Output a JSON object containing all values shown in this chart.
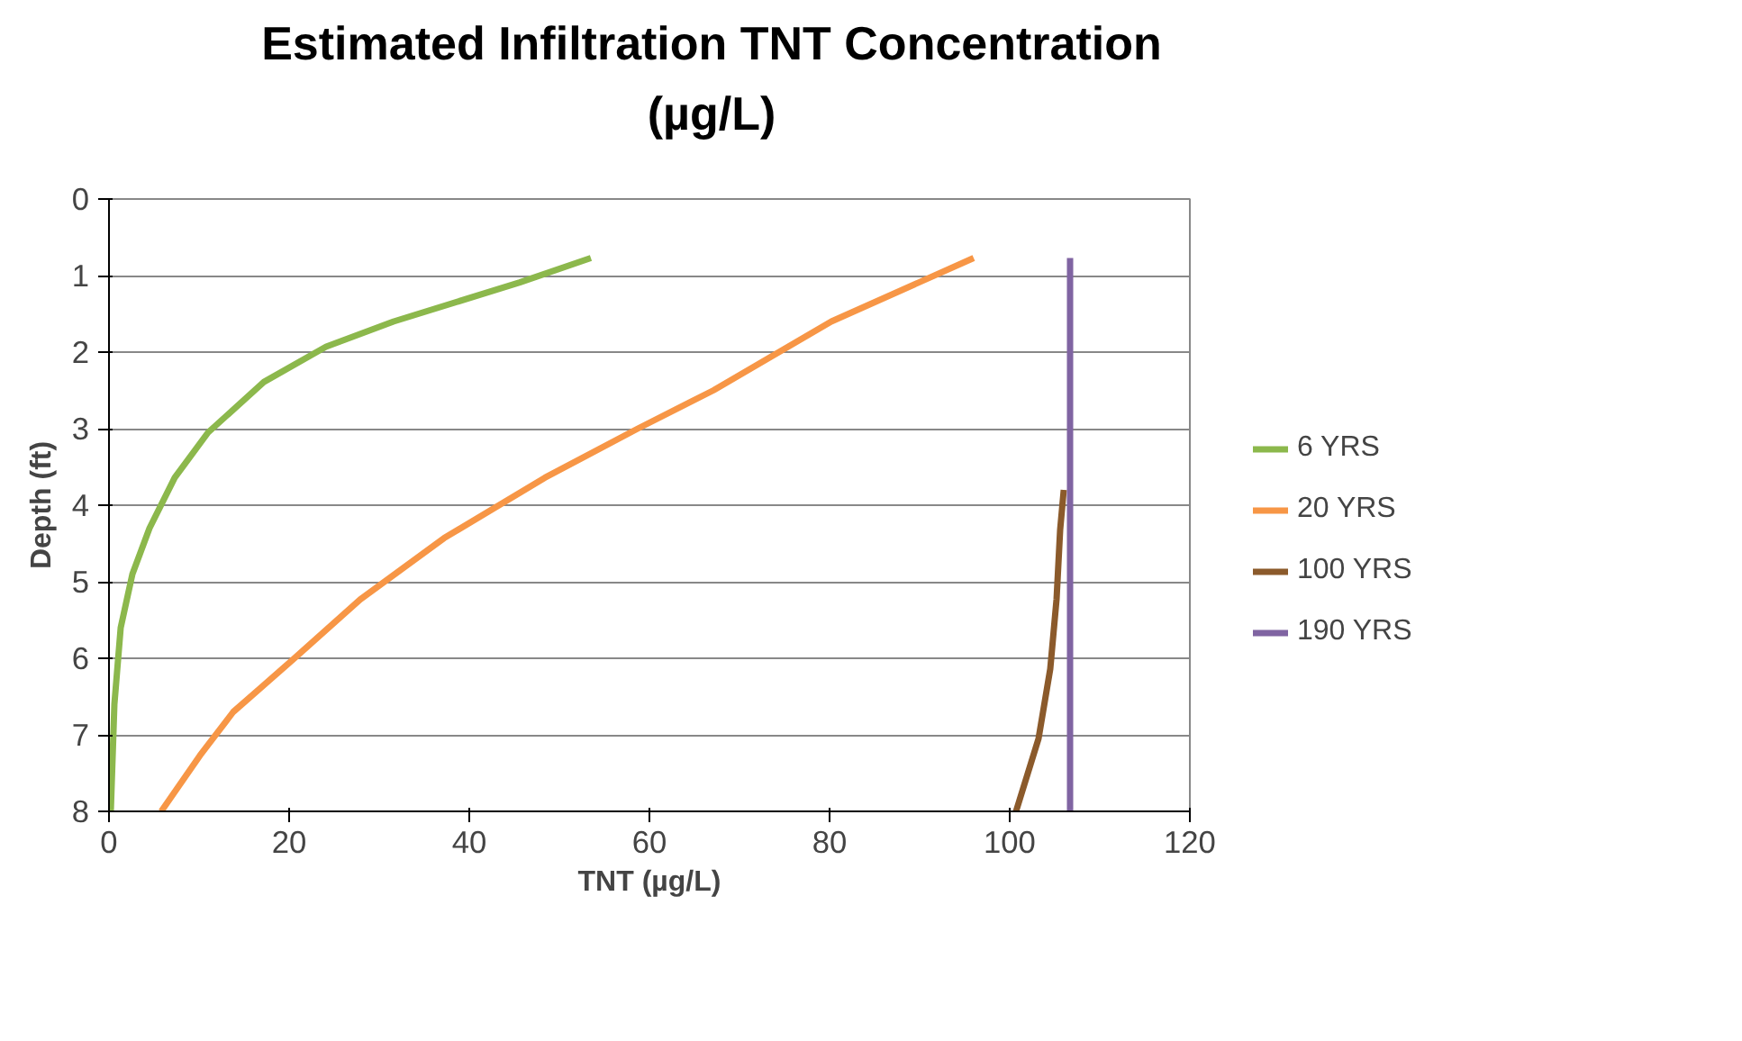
{
  "chart_data": {
    "type": "line",
    "title": "Estimated Infiltration TNT Concentration\n(µg/L)",
    "xlabel": "TNT (µg/L)",
    "ylabel": "Depth (ft)",
    "xlim": [
      0,
      120
    ],
    "xticks": [
      0,
      20,
      40,
      60,
      80,
      100,
      120
    ],
    "ylim": [
      8,
      0
    ],
    "yticks": [
      0,
      1,
      2,
      3,
      4,
      5,
      6,
      7,
      8
    ],
    "grid": "y",
    "legend": "right",
    "marker": "none",
    "line_style": "solid",
    "series": [
      {
        "name": "6 YRS",
        "color": "#8cb84c",
        "x": [
          53.5,
          45.6,
          31.6,
          24.1,
          17.2,
          11,
          7.3,
          4.5,
          2.6,
          1.3,
          0.6,
          0.2
        ],
        "values": [
          0.77,
          1.09,
          1.6,
          1.93,
          2.39,
          3.05,
          3.64,
          4.3,
          4.9,
          5.6,
          6.6,
          8
        ]
      },
      {
        "name": "20 YRS",
        "color": "#f79646",
        "x": [
          96,
          80.2,
          67.1,
          58.7,
          48.4,
          37.2,
          27.9,
          20.4,
          13.8,
          10.1,
          5.8
        ],
        "values": [
          0.77,
          1.6,
          2.5,
          3.0,
          3.64,
          4.43,
          5.23,
          6.02,
          6.7,
          7.27,
          8
        ]
      },
      {
        "name": "100 YRS",
        "color": "#8b5a2b",
        "x": [
          100.7,
          103.2,
          104.5,
          105.2,
          105.6,
          106
        ],
        "values": [
          8,
          7.05,
          6.14,
          5.23,
          4.32,
          3.8
        ]
      },
      {
        "name": "190 YRS",
        "color": "#8064a2",
        "x": [
          106.7,
          106.7
        ],
        "values": [
          0.77,
          8
        ]
      }
    ]
  }
}
